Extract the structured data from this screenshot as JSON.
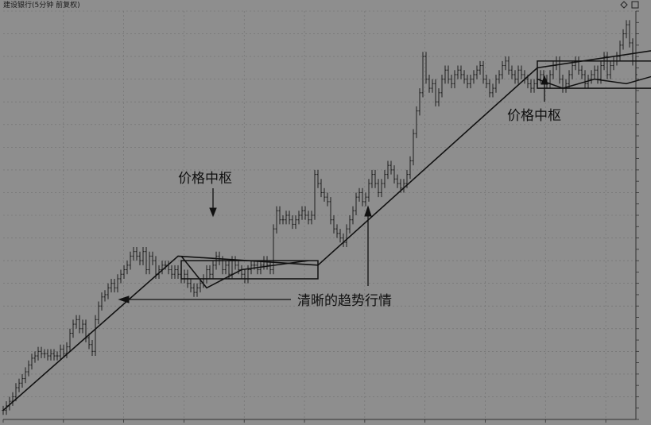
{
  "chart_data": {
    "type": "line",
    "title": "建设银行(5分钟 前复权)",
    "xlabel": "",
    "ylabel": "",
    "grid": true,
    "legend": "none",
    "price_range": [
      0,
      100
    ],
    "series": [
      {
        "values": [
          4,
          6,
          8,
          10,
          14,
          16,
          18,
          21,
          24,
          27,
          28,
          30,
          29,
          29,
          28,
          29,
          28,
          28,
          31,
          29,
          32,
          38,
          42,
          44,
          40,
          42,
          36,
          33,
          30,
          44,
          50,
          54,
          55,
          58,
          60,
          58,
          62,
          64,
          66,
          68,
          72,
          74,
          72,
          70,
          74,
          66,
          72,
          70,
          64,
          66,
          68,
          68,
          66,
          64,
          66,
          64,
          62,
          64,
          60,
          58,
          56,
          58,
          60,
          62,
          66,
          64,
          68,
          72,
          70,
          66,
          68,
          64,
          70,
          68,
          66,
          64,
          62,
          66,
          68,
          68,
          66,
          68,
          70,
          68,
          66,
          84,
          92,
          88,
          88,
          90,
          88,
          86,
          88,
          90,
          92,
          90,
          88,
          90,
          108,
          104,
          100,
          98,
          96,
          88,
          84,
          82,
          80,
          78,
          84,
          88,
          92,
          98,
          100,
          96,
          98,
          104,
          108,
          104,
          100,
          104,
          108,
          112,
          110,
          106,
          104,
          102,
          104,
          108,
          114,
          126,
          136,
          144,
          160,
          150,
          146,
          148,
          140,
          144,
          150,
          154,
          150,
          148,
          152,
          154,
          152,
          150,
          148,
          150,
          152,
          154,
          156,
          150,
          148,
          144,
          146,
          150,
          152,
          156,
          158,
          154,
          152,
          150,
          154,
          152,
          150,
          148,
          146,
          148,
          150,
          152,
          150,
          148,
          152,
          156,
          158,
          150,
          146,
          148,
          152,
          156,
          158,
          154,
          152,
          148,
          150,
          152,
          154,
          150,
          156,
          160,
          152,
          156,
          158,
          160,
          165,
          170,
          174,
          166,
          158,
          152
        ]
      }
    ],
    "overlays": {
      "trend_line": [
        [
          0,
          4
        ],
        [
          55,
          72
        ],
        [
          99,
          68
        ],
        [
          168,
          155
        ],
        [
          230,
          168
        ],
        [
          242,
          162
        ],
        [
          248,
          155
        ]
      ],
      "zigzag_center_1": [
        [
          56,
          72
        ],
        [
          64,
          58
        ],
        [
          75,
          66
        ],
        [
          96,
          70
        ]
      ],
      "zigzag_center_2": [
        [
          168,
          150
        ],
        [
          176,
          146
        ],
        [
          186,
          150
        ],
        [
          196,
          148
        ],
        [
          206,
          152
        ],
        [
          216,
          146
        ],
        [
          228,
          150
        ]
      ],
      "center_boxes": [
        {
          "x": [
            56,
            99
          ],
          "y": [
            62,
            70
          ]
        },
        {
          "x": [
            168,
            230
          ],
          "y": [
            146,
            158
          ]
        }
      ]
    },
    "annotations": {
      "center_label_1": "价格中枢",
      "center_label_2": "价格中枢",
      "trend_label": "清晰的趋势行情"
    }
  }
}
